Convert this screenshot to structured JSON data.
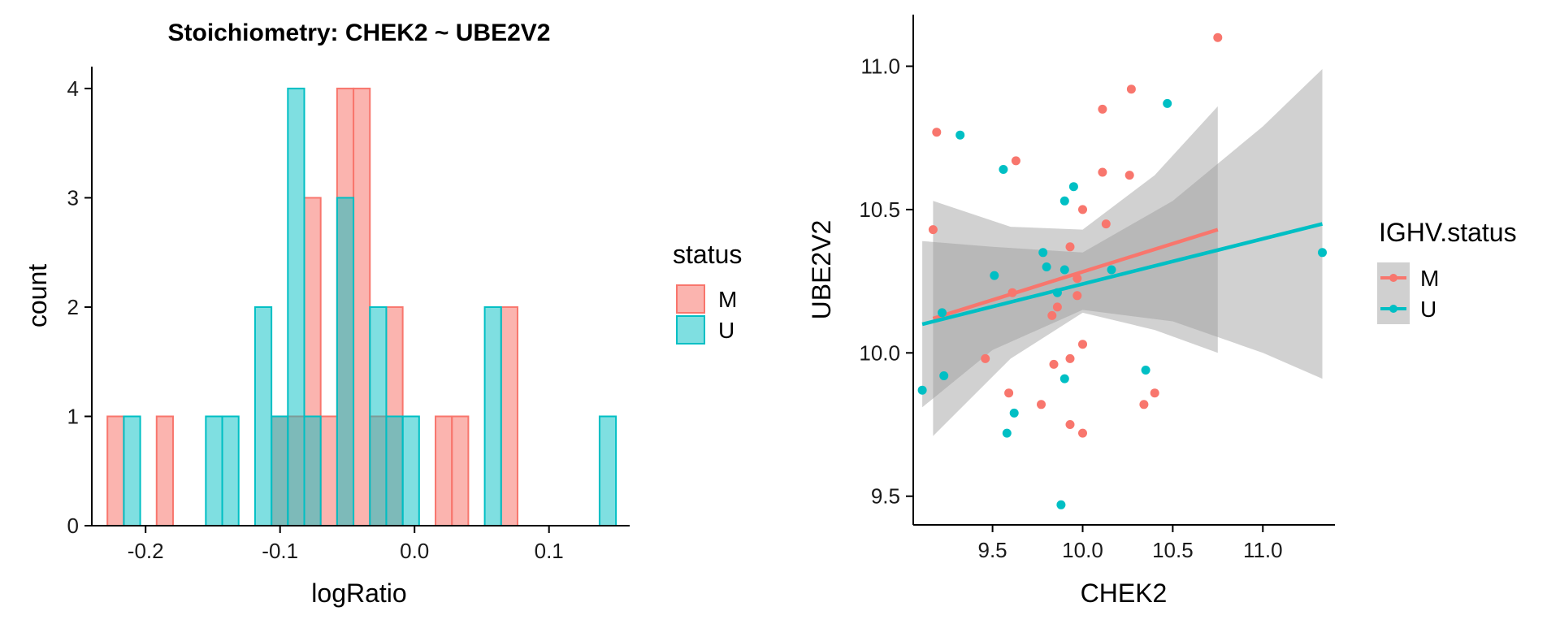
{
  "chart_data": [
    {
      "type": "histogram",
      "title": "Stoichiometry: CHEK2 ~ UBE2V2",
      "xlabel": "logRatio",
      "ylabel": "count",
      "xlim": [
        -0.24,
        0.16
      ],
      "ylim": [
        0,
        4.2
      ],
      "x_ticks": [
        -0.2,
        -0.1,
        0.0,
        0.1
      ],
      "x_tick_labels": [
        "-0.2",
        "-0.1",
        "0.0",
        "0.1"
      ],
      "y_ticks": [
        0,
        1,
        2,
        3,
        4
      ],
      "y_tick_labels": [
        "0",
        "1",
        "2",
        "3",
        "4"
      ],
      "bin_edges": [
        -0.2284,
        -0.2162,
        -0.204,
        -0.1918,
        -0.1796,
        -0.1674,
        -0.1552,
        -0.143,
        -0.1308,
        -0.1186,
        -0.1064,
        -0.0942,
        -0.082,
        -0.0698,
        -0.0576,
        -0.0454,
        -0.0332,
        -0.021,
        -0.0088,
        0.0034,
        0.0156,
        0.0278,
        0.04,
        0.0522,
        0.0644,
        0.0766,
        0.0888,
        0.101,
        0.1132,
        0.1254,
        0.1376,
        0.1498
      ],
      "series": [
        {
          "name": "M",
          "color": "#F8766D",
          "counts": [
            1,
            0,
            0,
            1,
            0,
            0,
            0,
            0,
            0,
            0,
            1,
            1,
            3,
            1,
            4,
            4,
            1,
            2,
            0,
            0,
            1,
            1,
            0,
            0,
            2,
            0,
            0,
            0,
            0,
            0,
            0
          ]
        },
        {
          "name": "U",
          "color": "#00BFC4",
          "counts": [
            0,
            1,
            0,
            0,
            0,
            0,
            1,
            1,
            0,
            2,
            1,
            4,
            1,
            0,
            3,
            0,
            2,
            1,
            1,
            0,
            0,
            0,
            0,
            2,
            0,
            0,
            0,
            0,
            0,
            0,
            1
          ]
        }
      ],
      "legend": {
        "title": "status",
        "entries": [
          "M",
          "U"
        ]
      }
    },
    {
      "type": "scatter",
      "xlabel": "CHEK2",
      "ylabel": "UBE2V2",
      "xlim": [
        9.06,
        11.4
      ],
      "ylim": [
        9.4,
        11.18
      ],
      "x_ticks": [
        9.5,
        10.0,
        10.5,
        11.0
      ],
      "x_tick_labels": [
        "9.5",
        "10.0",
        "10.5",
        "11.0"
      ],
      "y_ticks": [
        9.5,
        10.0,
        10.5,
        11.0
      ],
      "y_tick_labels": [
        "9.5",
        "10.0",
        "10.5",
        "11.0"
      ],
      "series": [
        {
          "name": "M",
          "color": "#F8766D",
          "points": [
            [
              10.75,
              11.1
            ],
            [
              10.27,
              10.92
            ],
            [
              10.11,
              10.85
            ],
            [
              9.19,
              10.77
            ],
            [
              9.63,
              10.67
            ],
            [
              10.11,
              10.63
            ],
            [
              10.26,
              10.62
            ],
            [
              10.0,
              10.5
            ],
            [
              9.17,
              10.43
            ],
            [
              10.13,
              10.45
            ],
            [
              9.93,
              10.37
            ],
            [
              9.97,
              10.26
            ],
            [
              9.61,
              10.21
            ],
            [
              9.97,
              10.2
            ],
            [
              9.86,
              10.16
            ],
            [
              9.83,
              10.13
            ],
            [
              9.22,
              10.14
            ],
            [
              9.46,
              9.98
            ],
            [
              10.0,
              10.03
            ],
            [
              9.93,
              9.98
            ],
            [
              9.84,
              9.96
            ],
            [
              10.4,
              9.86
            ],
            [
              9.59,
              9.86
            ],
            [
              9.77,
              9.82
            ],
            [
              10.34,
              9.82
            ],
            [
              9.93,
              9.75
            ],
            [
              10.0,
              9.72
            ]
          ]
        },
        {
          "name": "U",
          "color": "#00BFC4",
          "points": [
            [
              10.47,
              10.87
            ],
            [
              9.32,
              10.76
            ],
            [
              9.56,
              10.64
            ],
            [
              9.95,
              10.58
            ],
            [
              9.9,
              10.53
            ],
            [
              9.78,
              10.35
            ],
            [
              9.51,
              10.27
            ],
            [
              9.8,
              10.3
            ],
            [
              9.9,
              10.29
            ],
            [
              10.16,
              10.29
            ],
            [
              9.86,
              10.21
            ],
            [
              9.22,
              10.14
            ],
            [
              11.33,
              10.35
            ],
            [
              10.35,
              9.94
            ],
            [
              9.23,
              9.92
            ],
            [
              9.9,
              9.91
            ],
            [
              9.11,
              9.87
            ],
            [
              9.62,
              9.79
            ],
            [
              9.58,
              9.72
            ],
            [
              9.88,
              9.47
            ]
          ]
        }
      ],
      "fits": [
        {
          "name": "M",
          "color": "#F8766D",
          "x": [
            9.17,
            10.75
          ],
          "y": [
            10.12,
            10.43
          ],
          "ci_x": [
            9.17,
            9.6,
            10.0,
            10.4,
            10.75
          ],
          "ci_lower": [
            9.71,
            9.98,
            10.14,
            10.08,
            10.0
          ],
          "ci_upper": [
            10.53,
            10.44,
            10.43,
            10.62,
            10.86
          ]
        },
        {
          "name": "U",
          "color": "#00BFC4",
          "x": [
            9.11,
            11.33
          ],
          "y": [
            10.1,
            10.45
          ],
          "ci_x": [
            9.11,
            9.5,
            10.0,
            10.5,
            11.0,
            11.33
          ],
          "ci_lower": [
            9.81,
            10.01,
            10.15,
            10.11,
            10.0,
            9.91
          ],
          "ci_upper": [
            10.39,
            10.37,
            10.35,
            10.53,
            10.79,
            10.99
          ]
        }
      ],
      "legend": {
        "title": "IGHV.status",
        "entries": [
          "M",
          "U"
        ]
      }
    }
  ]
}
